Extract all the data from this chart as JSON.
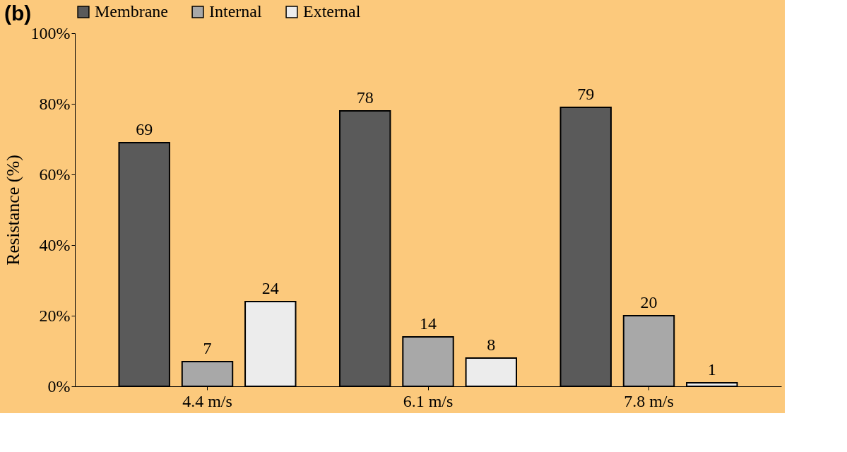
{
  "chart_data": {
    "type": "bar",
    "title": "(b)",
    "ylabel": "Resistance  (%)",
    "categories": [
      "4.4 m/s",
      "6.1 m/s",
      "7.8 m/s"
    ],
    "series": [
      {
        "name": "Membrane",
        "color": "#5a5a5a",
        "values": [
          69,
          78,
          79
        ]
      },
      {
        "name": "Internal",
        "color": "#a8a8a8",
        "values": [
          7,
          14,
          20
        ]
      },
      {
        "name": "External",
        "color": "#ececec",
        "values": [
          24,
          8,
          1
        ]
      }
    ],
    "ylim": [
      0,
      100
    ],
    "yticks": [
      {
        "value": 0,
        "label": "0%"
      },
      {
        "value": 20,
        "label": "20%"
      },
      {
        "value": 40,
        "label": "40%"
      },
      {
        "value": 60,
        "label": "60%"
      },
      {
        "value": 80,
        "label": "80%"
      },
      {
        "value": 100,
        "label": "100%"
      }
    ],
    "data_labels": true,
    "legend": "top",
    "grid": false
  }
}
